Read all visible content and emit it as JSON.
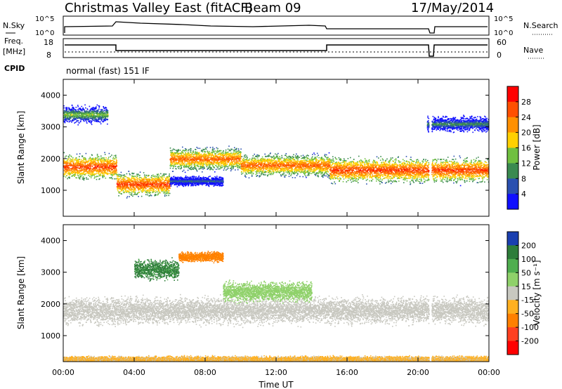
{
  "header": {
    "title": "Christmas Valley East (fitACF)",
    "beam": "Beam 09",
    "date": "17/May/2014",
    "mode": "normal (fast) 151 IF",
    "cpid_label": "CPID"
  },
  "aux": {
    "nsky_label": "N.Sky",
    "nsky_ticks": [
      "10^5",
      "10^0"
    ],
    "nsearch_label": "N.Search",
    "freq_label": "Freq.",
    "freq_unit": "[MHz]",
    "freq_ticks": [
      "18",
      "8"
    ],
    "nave_label": "Nave",
    "nave_ticks": [
      "60",
      "0"
    ]
  },
  "axes": {
    "xlabel": "Time UT",
    "xticks": [
      "00:00",
      "04:00",
      "08:00",
      "12:00",
      "16:00",
      "20:00",
      "00:00"
    ],
    "ylabel": "Slant Range [km]",
    "yticks": [
      "1000",
      "2000",
      "3000",
      "4000"
    ]
  },
  "colorbars": {
    "power": {
      "label": "Power [dB]",
      "ticks": [
        "28",
        "24",
        "20",
        "16",
        "12",
        "8",
        "4"
      ],
      "colors": [
        "#ff0000",
        "#ff5000",
        "#ff9000",
        "#ffd000",
        "#70c040",
        "#3a8a50",
        "#2a50b0",
        "#1010ff"
      ]
    },
    "velocity": {
      "label": "Velocity [m s⁻¹]",
      "ticks": [
        "200",
        "100",
        "50",
        "15",
        "-15",
        "-50",
        "-100",
        "-200"
      ],
      "colors": [
        "#1a3fb0",
        "#2e7d3a",
        "#4fae4f",
        "#8fd16a",
        "#c8c8c0",
        "#ffb020",
        "#ff8000",
        "#ff4020",
        "#ff0000"
      ]
    }
  },
  "chart_data": [
    {
      "type": "heatmap",
      "name": "Power",
      "xlabel": "Time UT",
      "ylabel": "Slant Range [km]",
      "xlim_hours": [
        0,
        24
      ],
      "ylim_km": [
        180,
        4500
      ],
      "colorbar": "Power [dB]",
      "colorbar_range": [
        0,
        30
      ],
      "bands": [
        {
          "t_start": 0.0,
          "t_end": 3.0,
          "r_center": 1750,
          "r_width": 500,
          "peak_db": 28
        },
        {
          "t_start": 3.0,
          "t_end": 6.0,
          "r_center": 1200,
          "r_width": 450,
          "peak_db": 28
        },
        {
          "t_start": 6.0,
          "t_end": 10.0,
          "r_center": 2000,
          "r_width": 450,
          "peak_db": 26
        },
        {
          "t_start": 10.0,
          "t_end": 15.0,
          "r_center": 1800,
          "r_width": 450,
          "peak_db": 26
        },
        {
          "t_start": 15.0,
          "t_end": 24.0,
          "r_center": 1650,
          "r_width": 500,
          "peak_db": 28
        },
        {
          "t_start": 0.0,
          "t_end": 2.5,
          "r_center": 3400,
          "r_width": 350,
          "peak_db": 16
        },
        {
          "t_start": 20.5,
          "t_end": 24.0,
          "r_center": 3100,
          "r_width": 300,
          "peak_db": 12
        },
        {
          "t_start": 6.0,
          "t_end": 9.0,
          "r_center": 1300,
          "r_width": 200,
          "peak_db": 10
        }
      ],
      "data_gaps_hours": [
        [
          20.6,
          20.75
        ]
      ]
    },
    {
      "type": "heatmap",
      "name": "Velocity",
      "xlabel": "Time UT",
      "ylabel": "Slant Range [km]",
      "xlim_hours": [
        0,
        24
      ],
      "ylim_km": [
        180,
        4500
      ],
      "colorbar": "Velocity [m s⁻¹]",
      "colorbar_range": [
        -200,
        200
      ],
      "bands": [
        {
          "t_start": 0.0,
          "t_end": 24.0,
          "r_center": 1800,
          "r_width": 550,
          "velocity": 0
        },
        {
          "t_start": 0.0,
          "t_end": 24.0,
          "r_center": 250,
          "r_width": 150,
          "velocity": -30
        },
        {
          "t_start": 9.0,
          "t_end": 14.0,
          "r_center": 2400,
          "r_width": 400,
          "velocity": 50
        },
        {
          "t_start": 4.0,
          "t_end": 6.5,
          "r_center": 3100,
          "r_width": 400,
          "velocity": 120
        },
        {
          "t_start": 6.5,
          "t_end": 9.0,
          "r_center": 3500,
          "r_width": 200,
          "velocity": -80
        }
      ],
      "data_gaps_hours": [
        [
          20.6,
          20.75
        ]
      ]
    }
  ]
}
